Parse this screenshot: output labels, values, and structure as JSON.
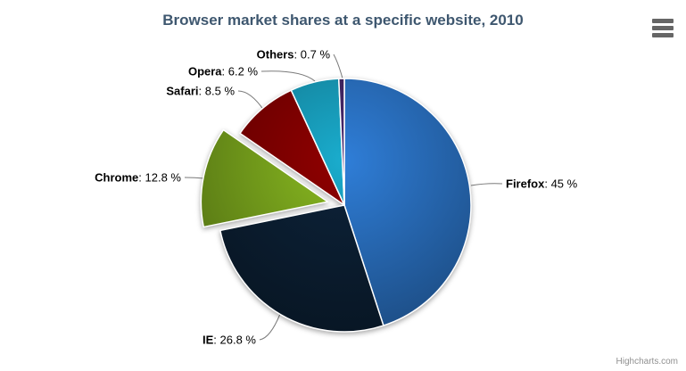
{
  "chart": {
    "title": "Browser market shares at a specific website, 2010",
    "credits": "Highcharts.com"
  },
  "export_menu": {
    "icon": "hamburger-menu-icon"
  },
  "colors": {
    "title": "#3E576F",
    "data_label": "#000000",
    "connector": "#7a7a7a",
    "credits": "#909090",
    "background": "#ffffff",
    "menu_icon": "#666666"
  },
  "chart_data": {
    "type": "pie",
    "title": "Browser market shares at a specific website, 2010",
    "legend": "none",
    "label_format": "<b>name</b>: value %",
    "points": [
      {
        "name": "Firefox",
        "value": 45.0,
        "display": "45 %",
        "color": "#2f7ed8",
        "sliced": false
      },
      {
        "name": "IE",
        "value": 26.8,
        "display": "26.8 %",
        "color": "#0d233a",
        "sliced": false
      },
      {
        "name": "Chrome",
        "value": 12.8,
        "display": "12.8 %",
        "color": "#8bbc21",
        "sliced": true
      },
      {
        "name": "Safari",
        "value": 8.5,
        "display": "8.5 %",
        "color": "#910000",
        "sliced": false
      },
      {
        "name": "Opera",
        "value": 6.2,
        "display": "6.2 %",
        "color": "#1aadce",
        "sliced": false
      },
      {
        "name": "Others",
        "value": 0.7,
        "display": "0.7 %",
        "color": "#492970",
        "sliced": false
      }
    ]
  }
}
